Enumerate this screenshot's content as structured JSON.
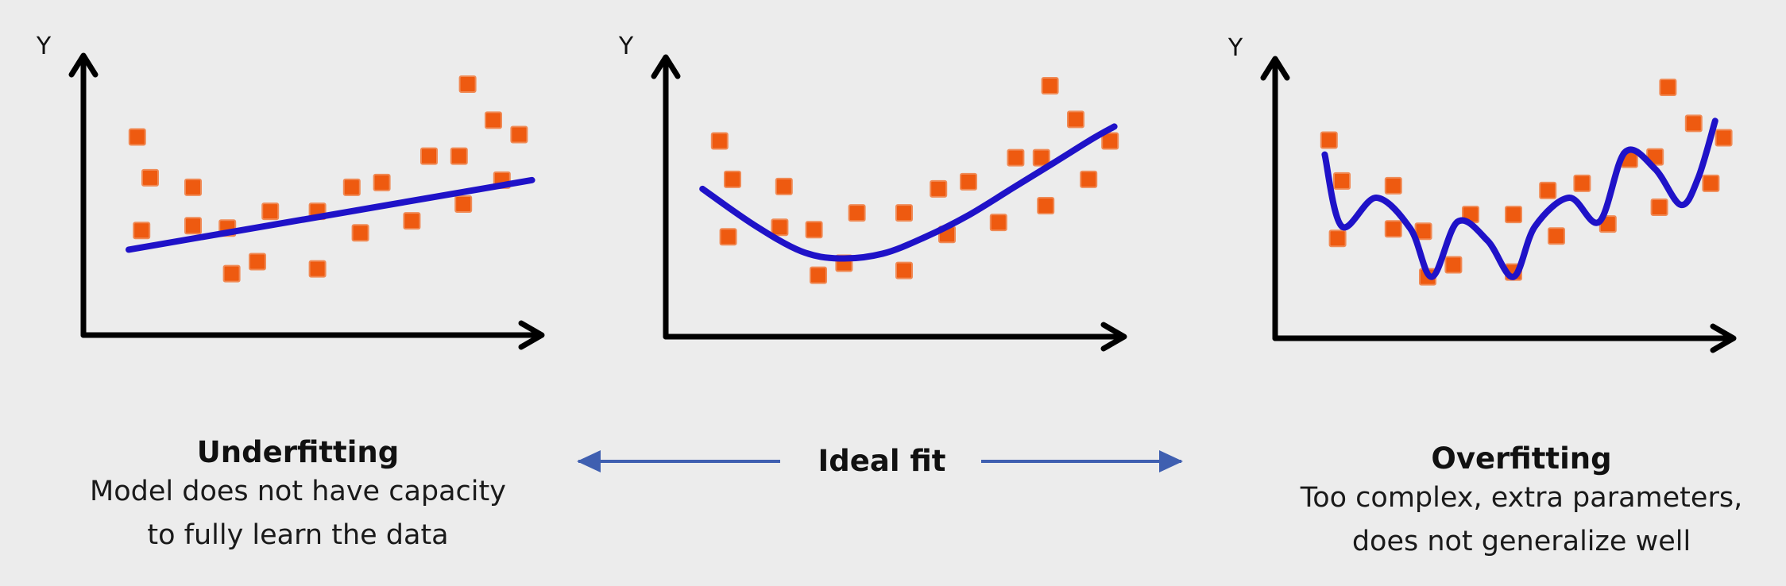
{
  "chart_data": [
    {
      "type": "scatter",
      "title": "",
      "ylabel": "Y",
      "xlabel": "",
      "xlim": [
        0,
        10
      ],
      "ylim": [
        0,
        10
      ],
      "grid": false,
      "points_color": "#ee5a10",
      "fit_color": "#1f12c8",
      "points": [
        [
          0.7,
          7.6
        ],
        [
          1.0,
          5.9
        ],
        [
          0.8,
          3.7
        ],
        [
          2.0,
          5.5
        ],
        [
          2.0,
          3.9
        ],
        [
          2.8,
          3.8
        ],
        [
          2.9,
          1.9
        ],
        [
          3.5,
          2.4
        ],
        [
          3.8,
          4.5
        ],
        [
          4.9,
          2.1
        ],
        [
          4.9,
          4.5
        ],
        [
          5.7,
          5.5
        ],
        [
          5.9,
          3.6
        ],
        [
          6.4,
          5.7
        ],
        [
          7.1,
          4.1
        ],
        [
          7.5,
          6.8
        ],
        [
          8.2,
          6.8
        ],
        [
          8.3,
          4.8
        ],
        [
          8.4,
          9.8
        ],
        [
          9.0,
          8.3
        ],
        [
          9.2,
          5.8
        ],
        [
          9.6,
          7.7
        ]
      ],
      "fit": [
        [
          0.5,
          2.9
        ],
        [
          9.9,
          5.8
        ]
      ]
    },
    {
      "type": "scatter",
      "title": "",
      "ylabel": "Y",
      "xlabel": "",
      "xlim": [
        0,
        10
      ],
      "ylim": [
        0,
        10
      ],
      "grid": false,
      "points_color": "#ee5a10",
      "fit_color": "#1f12c8",
      "points": [
        [
          0.7,
          7.5
        ],
        [
          1.0,
          5.9
        ],
        [
          0.9,
          3.5
        ],
        [
          2.2,
          5.6
        ],
        [
          2.1,
          3.9
        ],
        [
          2.9,
          3.8
        ],
        [
          3.0,
          1.9
        ],
        [
          3.6,
          2.4
        ],
        [
          3.9,
          4.5
        ],
        [
          5.0,
          2.1
        ],
        [
          5.0,
          4.5
        ],
        [
          5.8,
          5.5
        ],
        [
          6.0,
          3.6
        ],
        [
          6.5,
          5.8
        ],
        [
          7.2,
          4.1
        ],
        [
          7.6,
          6.8
        ],
        [
          8.2,
          6.8
        ],
        [
          8.3,
          4.8
        ],
        [
          8.4,
          9.8
        ],
        [
          9.0,
          8.4
        ],
        [
          9.3,
          5.9
        ],
        [
          9.8,
          7.5
        ]
      ],
      "fit": [
        [
          0.3,
          5.5
        ],
        [
          1.5,
          4.0
        ],
        [
          2.6,
          2.9
        ],
        [
          3.5,
          2.6
        ],
        [
          4.5,
          2.8
        ],
        [
          5.5,
          3.5
        ],
        [
          6.5,
          4.4
        ],
        [
          7.5,
          5.5
        ],
        [
          8.5,
          6.6
        ],
        [
          9.4,
          7.6
        ],
        [
          9.9,
          8.1
        ]
      ]
    },
    {
      "type": "scatter",
      "title": "",
      "ylabel": "Y",
      "xlabel": "",
      "xlim": [
        0,
        10
      ],
      "ylim": [
        0,
        10
      ],
      "grid": false,
      "points_color": "#ee5a10",
      "fit_color": "#1f12c8",
      "points": [
        [
          0.7,
          7.6
        ],
        [
          1.0,
          5.9
        ],
        [
          0.9,
          3.5
        ],
        [
          2.2,
          5.7
        ],
        [
          2.2,
          3.9
        ],
        [
          2.9,
          3.8
        ],
        [
          3.0,
          1.9
        ],
        [
          3.6,
          2.4
        ],
        [
          4.0,
          4.5
        ],
        [
          5.0,
          2.1
        ],
        [
          5.0,
          4.5
        ],
        [
          5.8,
          5.5
        ],
        [
          6.0,
          3.6
        ],
        [
          6.6,
          5.8
        ],
        [
          7.2,
          4.1
        ],
        [
          7.7,
          6.8
        ],
        [
          8.3,
          6.9
        ],
        [
          8.4,
          4.8
        ],
        [
          8.6,
          9.8
        ],
        [
          9.2,
          8.3
        ],
        [
          9.6,
          5.8
        ],
        [
          9.9,
          7.7
        ]
      ],
      "fit": [
        [
          0.6,
          7.0
        ],
        [
          1.0,
          4.0
        ],
        [
          1.8,
          5.2
        ],
        [
          2.6,
          3.9
        ],
        [
          3.1,
          1.9
        ],
        [
          3.7,
          4.2
        ],
        [
          4.4,
          3.4
        ],
        [
          5.0,
          1.9
        ],
        [
          5.5,
          4.0
        ],
        [
          6.3,
          5.2
        ],
        [
          7.0,
          4.2
        ],
        [
          7.6,
          7.1
        ],
        [
          8.3,
          6.4
        ],
        [
          8.9,
          4.9
        ],
        [
          9.3,
          6.0
        ],
        [
          9.7,
          8.4
        ]
      ]
    }
  ],
  "captions": {
    "underfitting": {
      "title": "Underfitting",
      "description": "Model does not have capacity\nto fully learn the data"
    },
    "ideal": {
      "title": "Ideal fit",
      "arrow_color": "#3f5fb0"
    },
    "overfitting": {
      "title": "Overfitting",
      "description": "Too complex, extra parameters,\ndoes not generalize well"
    }
  }
}
